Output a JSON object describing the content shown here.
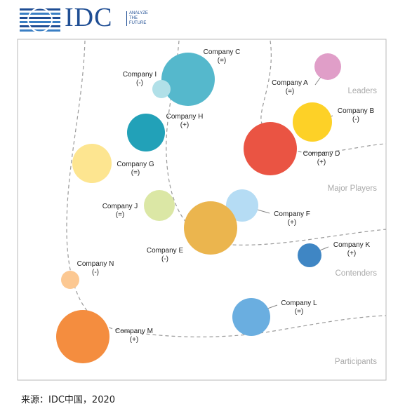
{
  "logo": {
    "text": "IDC",
    "tagline": [
      "ANALYZE",
      "THE",
      "FUTURE"
    ],
    "color": "#1f4e94"
  },
  "source": "来源：IDC中国，2020",
  "chart_data": {
    "type": "bubble",
    "segments": [
      "Leaders",
      "Major Players",
      "Contenders",
      "Participants"
    ],
    "companies": [
      {
        "name": "Company A",
        "change": "(=)",
        "color": "#e09ec8"
      },
      {
        "name": "Company B",
        "change": "(-)",
        "color": "#fdd127"
      },
      {
        "name": "Company C",
        "change": "(=)",
        "color": "#55b8cc"
      },
      {
        "name": "Company D",
        "change": "(+)",
        "color": "#ea5443"
      },
      {
        "name": "Company E",
        "change": "(-)",
        "color": "#ebb54e"
      },
      {
        "name": "Company F",
        "change": "(+)",
        "color": "#b5dcf4"
      },
      {
        "name": "Company G",
        "change": "(=)",
        "color": "#fde590"
      },
      {
        "name": "Company H",
        "change": "(+)",
        "color": "#22a1b8"
      },
      {
        "name": "Company I",
        "change": "(-)",
        "color": "#b1e0e8"
      },
      {
        "name": "Company J",
        "change": "(=)",
        "color": "#dbe7a5"
      },
      {
        "name": "Company K",
        "change": "(+)",
        "color": "#3f86c4"
      },
      {
        "name": "Company L",
        "change": "(=)",
        "color": "#6aaee0"
      },
      {
        "name": "Company M",
        "change": "(+)",
        "color": "#f48d3f"
      },
      {
        "name": "Company N",
        "change": "(-)",
        "color": "#fcc892"
      }
    ]
  }
}
